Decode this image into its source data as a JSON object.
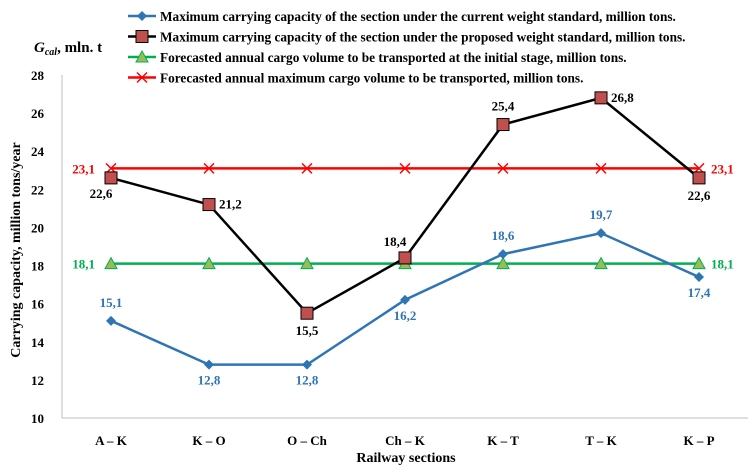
{
  "chart_data": {
    "type": "line",
    "title": "",
    "ylabel": "Carrying capacity, million tons/year",
    "ylabel_top": {
      "main": "G",
      "sub": "cal",
      "suffix": ", mln. t"
    },
    "xlabel": "Railway sections",
    "categories": [
      "A – K",
      "K – O",
      "O – Ch",
      "Ch – K",
      "K – T",
      "T – K",
      "K – P"
    ],
    "ylim": [
      10,
      28
    ],
    "yticks": [
      10,
      12,
      14,
      16,
      18,
      20,
      22,
      24,
      26,
      28
    ],
    "grid": false,
    "legend_position": "top",
    "series": [
      {
        "name": "Maximum carrying capacity of the section under the current weight standard, million tons.",
        "values": [
          15.1,
          12.8,
          12.8,
          16.2,
          18.6,
          19.7,
          17.4
        ],
        "labels": [
          "15,1",
          "12,8",
          "12,8",
          "16,2",
          "18,6",
          "19,7",
          "17,4"
        ],
        "color": "#2e75b6",
        "marker": "diamond"
      },
      {
        "name": "Maximum carrying capacity of the section under the proposed weight standard, million tons.",
        "values": [
          22.6,
          21.2,
          15.5,
          18.4,
          25.4,
          26.8,
          22.6
        ],
        "labels": [
          "22,6",
          "21,2",
          "15,5",
          "18,4",
          "25,4",
          "26,8",
          "22,6"
        ],
        "color": "#000000",
        "marker_fill": "#c0504d",
        "marker": "square"
      },
      {
        "name": "Forecasted annual cargo volume to be transported at the initial stage, million tons.",
        "values": [
          18.1,
          18.1,
          18.1,
          18.1,
          18.1,
          18.1,
          18.1
        ],
        "labels": [
          "18,1",
          "",
          "",
          "",
          "",
          "",
          "18,1"
        ],
        "color": "#00b050",
        "marker_fill": "#9bbb59",
        "marker": "triangle"
      },
      {
        "name": "Forecasted annual maximum cargo volume to be transported, million tons.",
        "values": [
          23.1,
          23.1,
          23.1,
          23.1,
          23.1,
          23.1,
          23.1
        ],
        "labels": [
          "23,1",
          "",
          "",
          "",
          "",
          "",
          "23,1"
        ],
        "color": "#ff0000",
        "marker": "x"
      }
    ]
  }
}
